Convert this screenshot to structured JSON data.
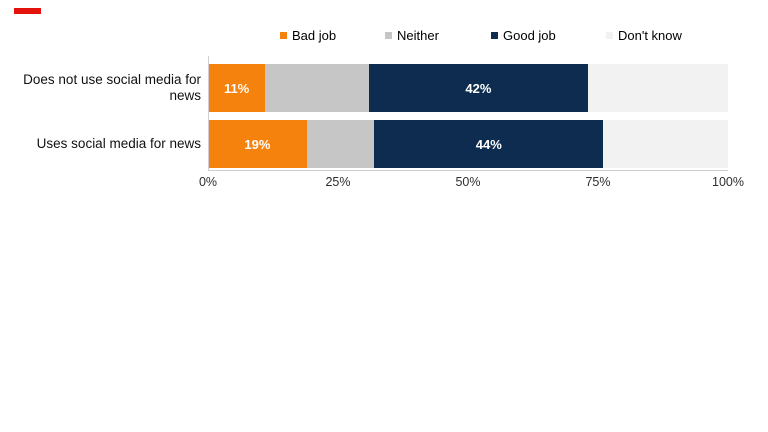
{
  "brand_tab": {
    "color": "#e3120b"
  },
  "colors": {
    "axis_line": "#cfcfcf",
    "bar_label_text": "#ffffff",
    "legend_text": "#000000",
    "category_text": "#111111",
    "tick_text": "#2e2e2e",
    "background": "#ffffff"
  },
  "chart_data": {
    "type": "bar",
    "orientation": "horizontal",
    "stacked": true,
    "title": "",
    "categories": [
      "Does not use social media for news",
      "Uses social media for news"
    ],
    "series": [
      {
        "name": "Bad job",
        "color": "#f6820e",
        "values": [
          11,
          19
        ],
        "value_labels": [
          "11%",
          "19%"
        ]
      },
      {
        "name": "Neither",
        "color": "#c6c6c6",
        "values": [
          20,
          13
        ],
        "value_labels": [
          "",
          ""
        ]
      },
      {
        "name": "Good job",
        "color": "#0d2c4f",
        "values": [
          42,
          44
        ],
        "value_labels": [
          "42%",
          "44%"
        ]
      },
      {
        "name": "Don't know",
        "color": "#f2f2f2",
        "values": [
          27,
          24
        ],
        "value_labels": [
          "",
          ""
        ]
      }
    ],
    "xlim": [
      0,
      100
    ],
    "x_ticks": [
      {
        "label": "0%",
        "value": 0
      },
      {
        "label": "25%",
        "value": 25
      },
      {
        "label": "50%",
        "value": 50
      },
      {
        "label": "75%",
        "value": 75
      },
      {
        "label": "100%",
        "value": 100
      }
    ],
    "legend_position": "top",
    "grid": false
  }
}
